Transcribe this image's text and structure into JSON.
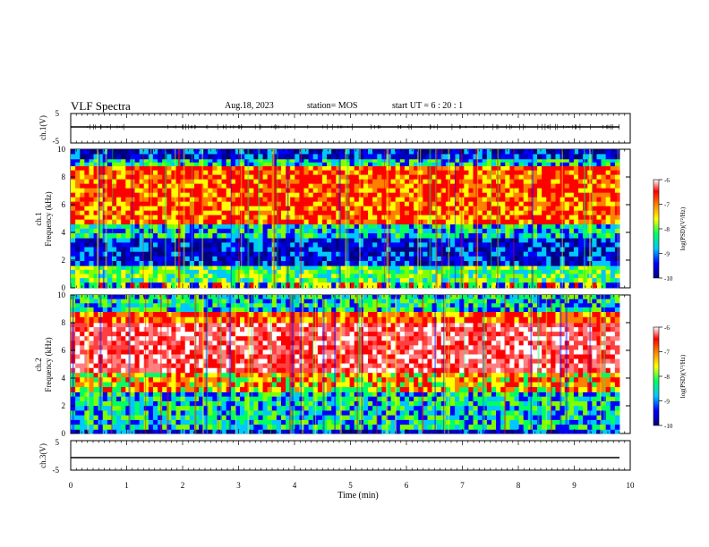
{
  "header": {
    "title": "VLF Spectra",
    "date": "Aug.18, 2023",
    "station": "station= MOS",
    "start": "start  UT =   6 : 20 : 1"
  },
  "chart_data": [
    {
      "type": "line",
      "panel": "ch1-waveform",
      "ylabel": "ch.1(V)",
      "ylim": [
        -5,
        5
      ],
      "yticks": [
        "5",
        "-5"
      ],
      "xlim": [
        0,
        10
      ],
      "series": [
        {
          "values_level": 0
        }
      ]
    },
    {
      "type": "heatmap",
      "panel": "ch1-spectrogram",
      "ylabel_top": "ch.1",
      "ylabel": "Frequency (kHz)",
      "ylim": [
        0,
        10
      ],
      "yticks": [
        "0",
        "2",
        "4",
        "6",
        "8",
        "10"
      ],
      "xlim": [
        0,
        10
      ],
      "bands": [
        {
          "from": 0,
          "to": 0.4,
          "level": "noisy"
        },
        {
          "from": 0.4,
          "to": 1.6,
          "level": "green-yellow"
        },
        {
          "from": 1.6,
          "to": 3.6,
          "level": "blue-dark"
        },
        {
          "from": 3.6,
          "to": 4.6,
          "level": "green"
        },
        {
          "from": 4.6,
          "to": 8.8,
          "level": "red-yellow"
        },
        {
          "from": 8.8,
          "to": 9.3,
          "level": "green-cyan"
        },
        {
          "from": 9.3,
          "to": 10,
          "level": "blue-dark"
        }
      ],
      "colorbar": {
        "label": "log(PSD)(V²/Hz)",
        "min": -10,
        "max": -6,
        "ticks": [
          "-6",
          "-7",
          "-8",
          "-9",
          "-10"
        ]
      }
    },
    {
      "type": "heatmap",
      "panel": "ch2-spectrogram",
      "ylabel_top": "ch.2",
      "ylabel": "Frequency (kHz)",
      "ylim": [
        0,
        10
      ],
      "yticks": [
        "0",
        "2",
        "4",
        "6",
        "8",
        "10"
      ],
      "xlim": [
        0,
        10
      ],
      "bands": [
        {
          "from": 0,
          "to": 0.3,
          "level": "blue-dark"
        },
        {
          "from": 0.3,
          "to": 3.0,
          "level": "cyan-green"
        },
        {
          "from": 3.0,
          "to": 4.4,
          "level": "yellow-red"
        },
        {
          "from": 4.4,
          "to": 8.0,
          "level": "red-white"
        },
        {
          "from": 8.0,
          "to": 8.8,
          "level": "red"
        },
        {
          "from": 8.8,
          "to": 10,
          "level": "green-cyan"
        }
      ],
      "colorbar": {
        "label": "log(PSD)(V²/Hz)",
        "min": -10,
        "max": -6,
        "ticks": [
          "-6",
          "-7",
          "-8",
          "-9",
          "-10"
        ]
      }
    },
    {
      "type": "line",
      "panel": "ch3-waveform",
      "ylabel": "ch.3(V)",
      "ylim": [
        -5,
        5
      ],
      "yticks": [
        "5",
        "-5"
      ],
      "xlim": [
        0,
        10
      ],
      "xlabel": "Time  (min)",
      "xticks": [
        "0",
        "1",
        "2",
        "3",
        "4",
        "5",
        "6",
        "7",
        "8",
        "9",
        "10"
      ],
      "series": [
        {
          "values_level": -1.5
        }
      ]
    }
  ],
  "colors": {
    "ramp": [
      "#000080",
      "#0000ff",
      "#00c8ff",
      "#00ff80",
      "#80ff00",
      "#ffff00",
      "#ff8000",
      "#ff0000",
      "#ffffff"
    ]
  }
}
